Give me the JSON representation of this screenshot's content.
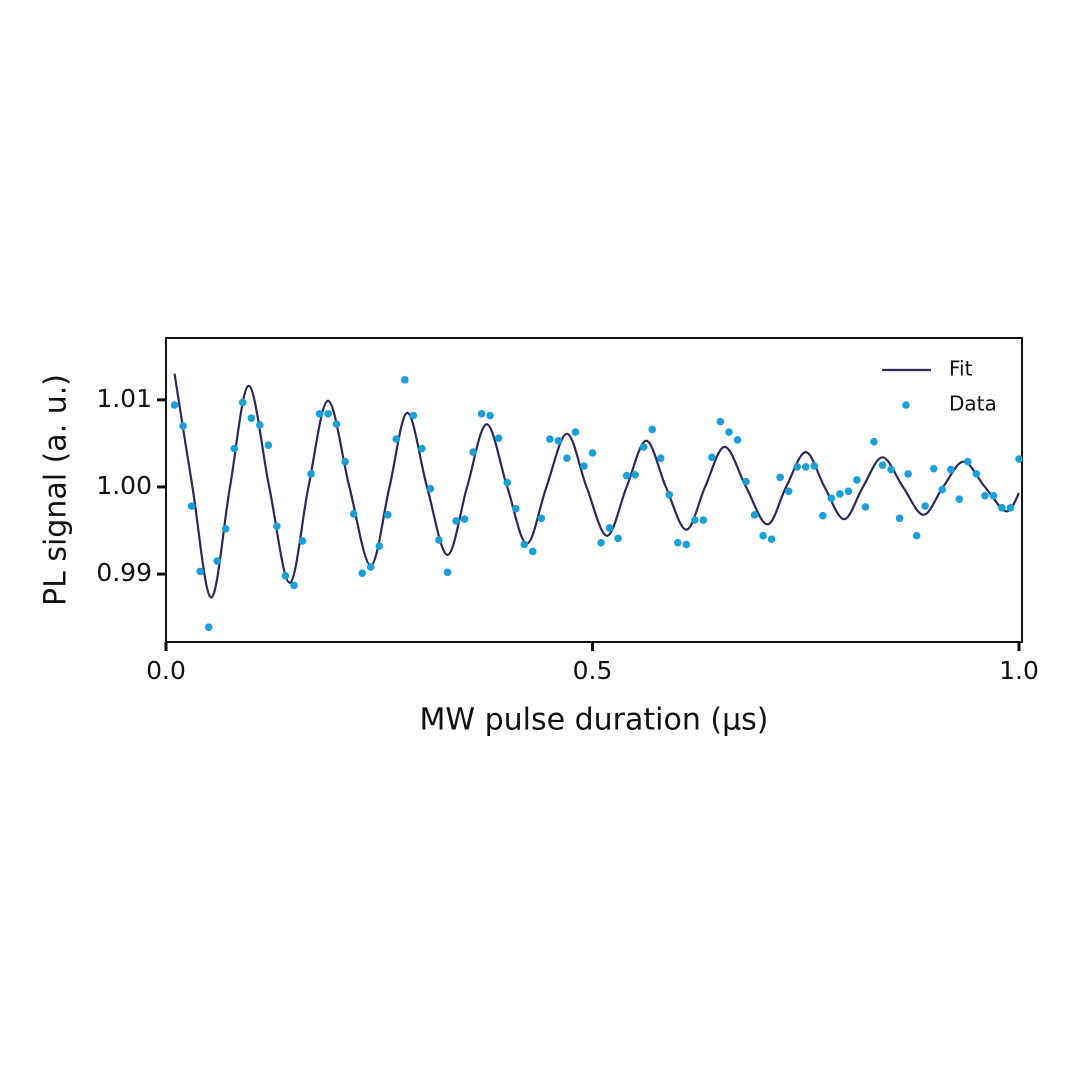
{
  "chart_data": {
    "type": "scatter",
    "xlabel": "MW pulse duration (µs)",
    "ylabel": "PL signal (a. u.)",
    "xlim": [
      0,
      1.0035
    ],
    "ylim": [
      0.9822,
      1.0171
    ],
    "xticks": [
      {
        "value": 0,
        "label": "0.0"
      },
      0.5,
      {
        "value": 1.0,
        "label": "1.0"
      }
    ],
    "yticks": [
      0.99,
      {
        "value": 1.0,
        "label": "1.00"
      },
      1.01
    ],
    "legend": "upper right",
    "series": [
      {
        "name": "Fit",
        "type": "line",
        "color": "#2b2b55",
        "x": [
          0.01,
          0.031,
          0.053,
          0.075,
          0.097,
          0.121,
          0.145,
          0.167,
          0.19,
          0.215,
          0.24,
          0.262,
          0.283,
          0.306,
          0.33,
          0.353,
          0.376,
          0.4,
          0.423,
          0.446,
          0.47,
          0.493,
          0.517,
          0.54,
          0.563,
          0.586,
          0.61,
          0.632,
          0.655,
          0.68,
          0.705,
          0.727,
          0.75,
          0.772,
          0.795,
          0.817,
          0.84,
          0.864,
          0.888,
          0.911,
          0.935,
          0.96,
          0.985,
          1.0
        ],
        "values": [
          1.013,
          1.0,
          0.9873,
          1.0,
          1.0116,
          1.0,
          0.989,
          1.0,
          1.0099,
          1.0,
          0.991,
          1.0,
          1.0085,
          1.0,
          0.9922,
          1.0,
          1.0072,
          1.0,
          0.9935,
          1.0,
          1.0061,
          1.0,
          0.9944,
          1.0,
          1.0053,
          1.0,
          0.9951,
          1.0,
          1.0046,
          1.0,
          0.9957,
          1.0,
          1.004,
          1.0,
          0.9963,
          1.0,
          1.0034,
          1.0,
          0.9968,
          1.0,
          1.0029,
          1.0,
          0.9972,
          0.9993
        ]
      },
      {
        "name": "Data",
        "type": "scatter",
        "color": "#1a9fd8",
        "x": [
          0.01,
          0.02,
          0.03,
          0.04,
          0.05,
          0.06,
          0.07,
          0.08,
          0.09,
          0.1,
          0.11,
          0.12,
          0.13,
          0.14,
          0.15,
          0.16,
          0.17,
          0.18,
          0.19,
          0.2,
          0.21,
          0.22,
          0.23,
          0.24,
          0.25,
          0.26,
          0.27,
          0.28,
          0.29,
          0.3,
          0.31,
          0.32,
          0.33,
          0.34,
          0.35,
          0.36,
          0.37,
          0.38,
          0.39,
          0.4,
          0.41,
          0.42,
          0.43,
          0.44,
          0.45,
          0.46,
          0.47,
          0.48,
          0.49,
          0.5,
          0.51,
          0.52,
          0.53,
          0.54,
          0.55,
          0.56,
          0.57,
          0.58,
          0.59,
          0.6,
          0.61,
          0.62,
          0.63,
          0.64,
          0.65,
          0.66,
          0.67,
          0.68,
          0.69,
          0.7,
          0.71,
          0.72,
          0.73,
          0.74,
          0.75,
          0.76,
          0.77,
          0.78,
          0.79,
          0.8,
          0.81,
          0.82,
          0.83,
          0.84,
          0.85,
          0.86,
          0.87,
          0.88,
          0.89,
          0.9,
          0.91,
          0.92,
          0.93,
          0.94,
          0.95,
          0.96,
          0.97,
          0.98,
          0.99,
          1.0
        ],
        "values": [
          1.0094,
          1.007,
          0.9978,
          0.9903,
          0.9839,
          0.9915,
          0.9952,
          1.0044,
          1.0097,
          1.0079,
          1.0071,
          1.0048,
          0.9955,
          0.9898,
          0.9887,
          0.9938,
          1.0015,
          1.0084,
          1.0084,
          1.0072,
          1.0029,
          0.9969,
          0.9901,
          0.9908,
          0.9932,
          0.9968,
          1.0055,
          1.0123,
          1.0082,
          1.0044,
          0.9998,
          0.9939,
          0.9902,
          0.9961,
          0.9963,
          1.004,
          1.0084,
          1.0082,
          1.0056,
          1.0005,
          0.9975,
          0.9934,
          0.9926,
          0.9964,
          1.0055,
          1.0053,
          1.0033,
          1.0063,
          1.0024,
          1.0039,
          0.9936,
          0.9953,
          0.9941,
          1.0013,
          1.0014,
          1.0046,
          1.0066,
          1.0033,
          0.9991,
          0.9936,
          0.9934,
          0.9962,
          0.9962,
          1.0034,
          1.0075,
          1.0063,
          1.0054,
          1.0006,
          0.9968,
          0.9944,
          0.994,
          1.0011,
          0.9995,
          1.0023,
          1.0023,
          1.0024,
          0.9967,
          0.9987,
          0.9992,
          0.9995,
          1.0008,
          0.9977,
          1.0052,
          1.0025,
          1.002,
          0.9964,
          1.0015,
          0.9944,
          0.9978,
          1.0021,
          0.9997,
          1.002,
          0.9986,
          1.0029,
          1.0015,
          0.999,
          0.999,
          0.9976,
          0.9976,
          1.0032
        ]
      }
    ]
  }
}
